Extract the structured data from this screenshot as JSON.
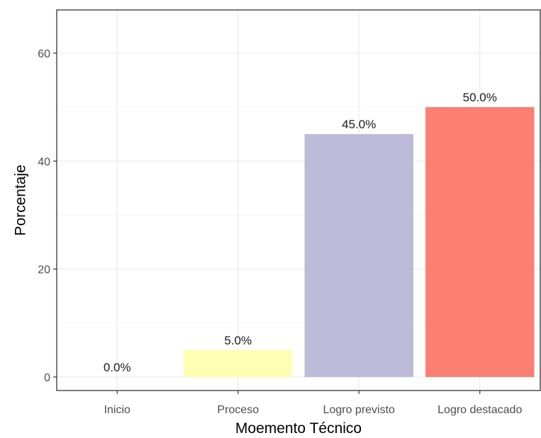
{
  "chart_data": {
    "type": "bar",
    "title": "",
    "xlabel": "Moemento Técnico",
    "ylabel": "Porcentaje",
    "categories": [
      "Inicio",
      "Proceso",
      "Logro previsto",
      "Logro destacado"
    ],
    "values": [
      0.0,
      5.0,
      45.0,
      50.0
    ],
    "data_labels": [
      "0.0%",
      "5.0%",
      "45.0%",
      "50.0%"
    ],
    "bar_colors": [
      "#8DD3C7",
      "#FFFFB3",
      "#BEBADA",
      "#FB8072"
    ],
    "ylim": [
      -2.5,
      68
    ],
    "yticks": [
      0,
      20,
      40,
      60
    ],
    "ytick_labels": [
      "0",
      "20",
      "40",
      "60"
    ],
    "grid": true,
    "legend": "none"
  }
}
